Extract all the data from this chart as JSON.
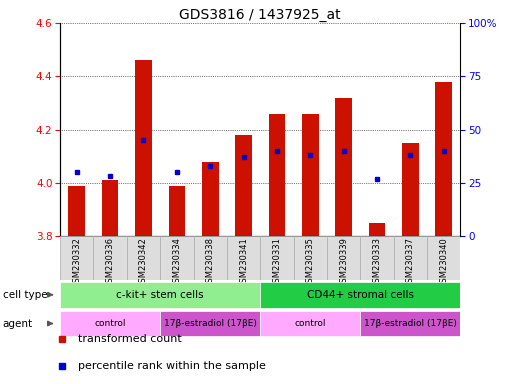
{
  "title": "GDS3816 / 1437925_at",
  "samples": [
    "GSM230332",
    "GSM230336",
    "GSM230342",
    "GSM230334",
    "GSM230338",
    "GSM230341",
    "GSM230331",
    "GSM230335",
    "GSM230339",
    "GSM230333",
    "GSM230337",
    "GSM230340"
  ],
  "transformed_counts": [
    3.99,
    4.01,
    4.46,
    3.99,
    4.08,
    4.18,
    4.26,
    4.26,
    4.32,
    3.85,
    4.15,
    4.38
  ],
  "percentile_ranks": [
    30,
    28,
    45,
    30,
    33,
    37,
    40,
    38,
    40,
    27,
    38,
    40
  ],
  "ylim_left": [
    3.8,
    4.6
  ],
  "ylim_right": [
    0,
    100
  ],
  "yticks_left": [
    3.8,
    4.0,
    4.2,
    4.4,
    4.6
  ],
  "yticks_right": [
    0,
    25,
    50,
    75,
    100
  ],
  "bar_color": "#cc1100",
  "dot_color": "#0000cc",
  "bar_bottom": 3.8,
  "cell_type_groups": [
    {
      "label": "c-kit+ stem cells",
      "start": 0,
      "end": 5,
      "color": "#90ee90"
    },
    {
      "label": "CD44+ stromal cells",
      "start": 6,
      "end": 11,
      "color": "#22cc44"
    }
  ],
  "agent_groups": [
    {
      "label": "control",
      "start": 0,
      "end": 2,
      "color": "#ffaaff"
    },
    {
      "label": "17β-estradiol (17βE)",
      "start": 3,
      "end": 5,
      "color": "#cc55cc"
    },
    {
      "label": "control",
      "start": 6,
      "end": 8,
      "color": "#ffaaff"
    },
    {
      "label": "17β-estradiol (17βE)",
      "start": 9,
      "end": 11,
      "color": "#cc55cc"
    }
  ],
  "legend_red_label": "transformed count",
  "legend_blue_label": "percentile rank within the sample",
  "cell_type_label": "cell type",
  "agent_label": "agent"
}
